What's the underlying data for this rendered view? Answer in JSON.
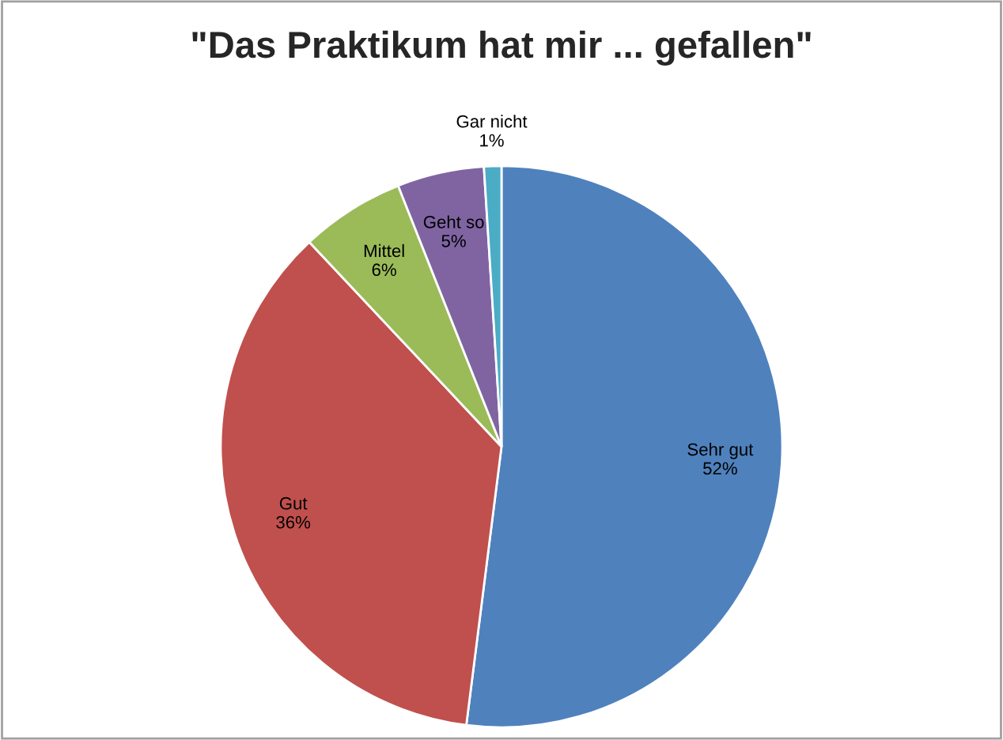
{
  "chart_data": {
    "type": "pie",
    "title": "\"Das Praktikum hat mir ... gefallen\"",
    "categories": [
      "Sehr gut",
      "Gut",
      "Mittel",
      "Geht so",
      "Gar nicht"
    ],
    "values": [
      52,
      36,
      6,
      5,
      1
    ],
    "colors": [
      "#4f81bd",
      "#c0504d",
      "#9bbb59",
      "#8064a2",
      "#4bacc6"
    ],
    "value_labels": [
      "52%",
      "36%",
      "6%",
      "5%",
      "1%"
    ],
    "legend": false
  }
}
